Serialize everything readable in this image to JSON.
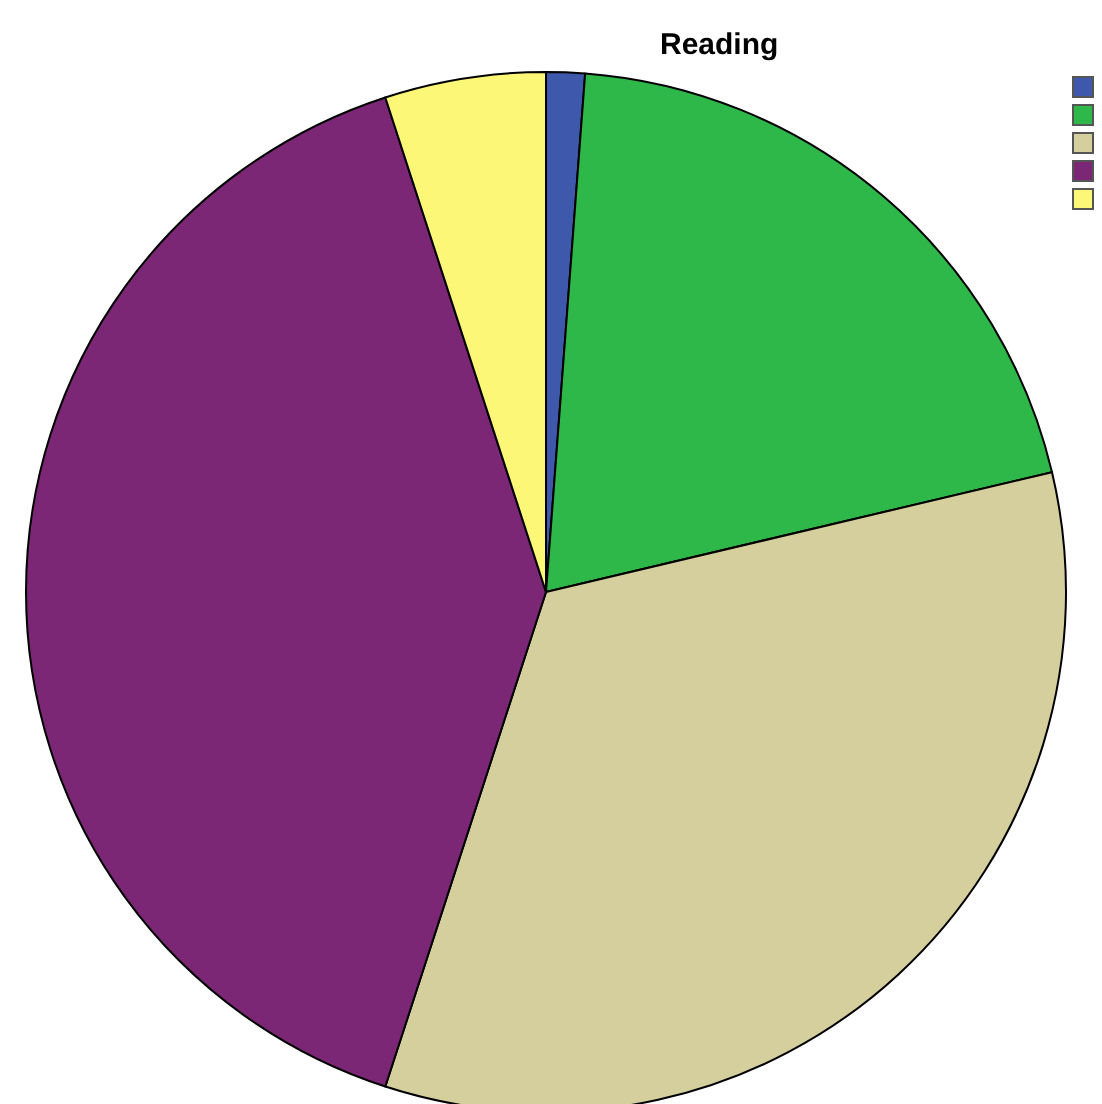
{
  "chart_data": {
    "type": "pie",
    "title": "Reading",
    "categories": [
      null,
      null,
      null,
      null,
      null
    ],
    "values": [
      1.2,
      20.1,
      33.7,
      40.0,
      5.0
    ],
    "colors": [
      "#3e58ac",
      "#2eb84a",
      "#d4cf9c",
      "#7b2776",
      "#fcf776"
    ]
  }
}
